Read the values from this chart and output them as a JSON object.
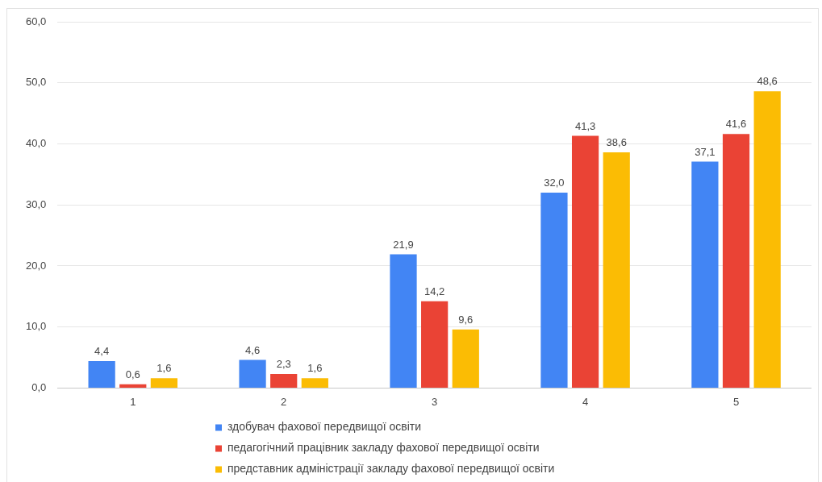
{
  "chart_data": {
    "type": "bar",
    "categories": [
      "1",
      "2",
      "3",
      "4",
      "5"
    ],
    "series": [
      {
        "name": "здобувач фахової передвищої освіти",
        "color": "#4285f4",
        "values": [
          4.4,
          4.6,
          21.9,
          32.0,
          37.1
        ],
        "value_labels": [
          "4,4",
          "4,6",
          "21,9",
          "32,0",
          "37,1"
        ]
      },
      {
        "name": "педагогічний працівник закладу фахової передвищої освіти",
        "color": "#ea4335",
        "values": [
          0.6,
          2.3,
          14.2,
          41.3,
          41.6
        ],
        "value_labels": [
          "0,6",
          "2,3",
          "14,2",
          "41,3",
          "41,6"
        ]
      },
      {
        "name": "представник адміністрації закладу фахової передвищої освіти",
        "color": "#fbbc04",
        "values": [
          1.6,
          1.6,
          9.6,
          38.6,
          48.6
        ],
        "value_labels": [
          "1,6",
          "1,6",
          "9,6",
          "38,6",
          "48,6"
        ]
      }
    ],
    "ylim": [
      0,
      60
    ],
    "yticks": [
      {
        "value": 0,
        "label": "0,0"
      },
      {
        "value": 10,
        "label": "10,0"
      },
      {
        "value": 20,
        "label": "20,0"
      },
      {
        "value": 30,
        "label": "30,0"
      },
      {
        "value": 40,
        "label": "40,0"
      },
      {
        "value": 50,
        "label": "50,0"
      },
      {
        "value": 60,
        "label": "60,0"
      }
    ],
    "grid": "y",
    "legend": "bottom"
  }
}
